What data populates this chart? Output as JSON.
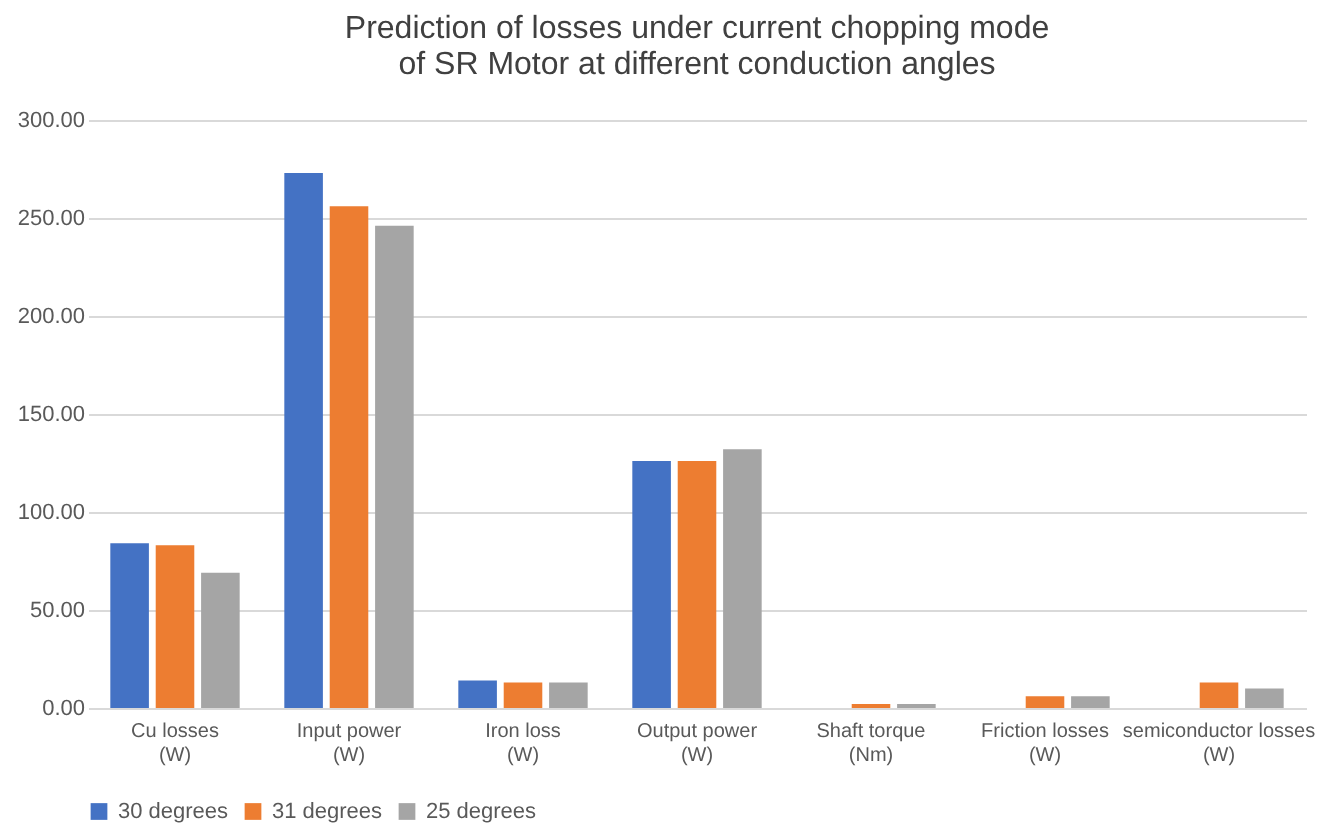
{
  "chart_data": {
    "type": "bar",
    "title": "Prediction of losses under current chopping mode of SR Motor at different conduction angles",
    "categories": [
      "Cu losses (W)",
      "Input power (W)",
      "Iron loss (W)",
      "Output power (W)",
      "Shaft torque (Nm)",
      "Friction losses (W)",
      "semiconductor losses (W)"
    ],
    "series": [
      {
        "name": "30 degrees",
        "color": "#4472c4",
        "values": [
          84,
          273,
          14,
          126,
          null,
          null,
          null
        ]
      },
      {
        "name": "31 degrees",
        "color": "#ed7d31",
        "values": [
          83,
          256,
          13,
          126,
          2,
          6,
          13
        ]
      },
      {
        "name": "25 degrees",
        "color": "#a5a5a5",
        "values": [
          69,
          246,
          13,
          132,
          2,
          6,
          10
        ]
      }
    ],
    "ylim": [
      0,
      300
    ],
    "yticks": [
      {
        "value": 0,
        "label": "0.00"
      },
      {
        "value": 50,
        "label": "50.00"
      },
      {
        "value": 100,
        "label": "100.00"
      },
      {
        "value": 150,
        "label": "150.00"
      },
      {
        "value": 200,
        "label": "200.00"
      },
      {
        "value": 250,
        "label": "250.00"
      },
      {
        "value": 300,
        "label": "300.00"
      }
    ],
    "grid": "y",
    "legend": "bottom"
  }
}
